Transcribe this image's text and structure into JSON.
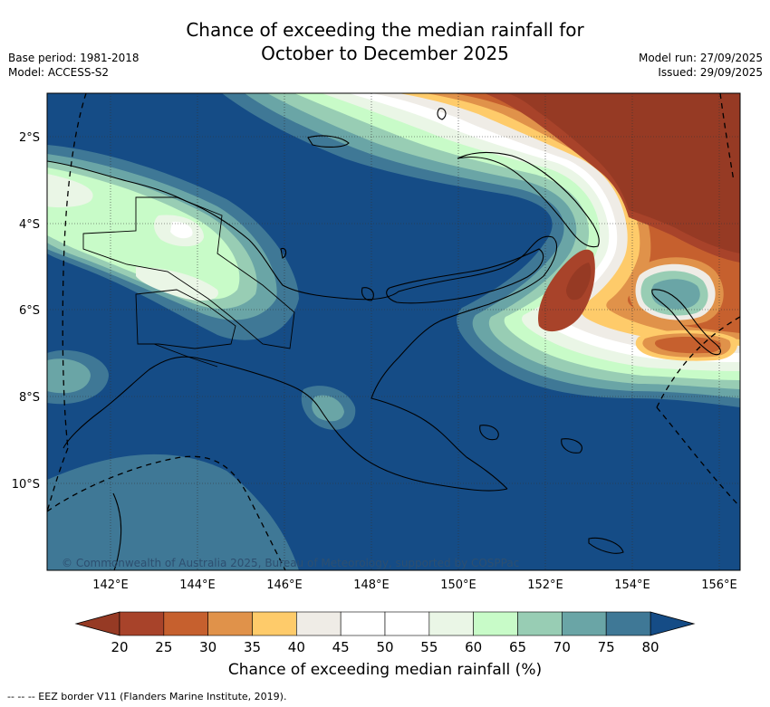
{
  "title_line1": "Chance of exceeding the median rainfall for",
  "title_line2": "October to December 2025",
  "base_period": "Base period: 1981-2018",
  "model": "Model: ACCESS-S2",
  "model_run": "Model run: 27/09/2025",
  "issued": "Issued: 29/09/2025",
  "lat_ticks": [
    "2°S",
    "4°S",
    "6°S",
    "8°S",
    "10°S"
  ],
  "lon_ticks": [
    "142°E",
    "144°E",
    "146°E",
    "148°E",
    "150°E",
    "152°E",
    "154°E",
    "156°E"
  ],
  "copyright": "© Commonwealth of Australia 2025, Bureau of Meteorology, supported by COSPPac",
  "colorbar": {
    "label": "Chance of exceeding median rainfall (%)",
    "ticks": [
      "20",
      "25",
      "30",
      "35",
      "40",
      "45",
      "50",
      "55",
      "60",
      "65",
      "70",
      "75",
      "80"
    ],
    "colors": [
      "#a8432a",
      "#c6602e",
      "#e0924a",
      "#fecb6a",
      "#efece6",
      "#ffffff",
      "#ffffff",
      "#eaf6e6",
      "#c8fbc8",
      "#98cdb4",
      "#6aa5a6",
      "#3f7896"
    ],
    "under_color": "#963a24",
    "over_color": "#154c86"
  },
  "eez_note": "--  --  -- EEZ border V11 (Flanders Marine Institute, 2019)."
}
